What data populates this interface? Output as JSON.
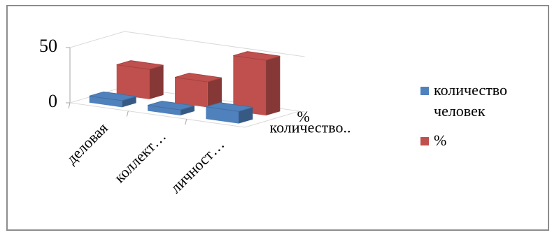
{
  "chart_data": {
    "type": "bar3d",
    "categories": [
      "деловая",
      "коллект…",
      "личност…"
    ],
    "depth_labels": [
      "%",
      "количество.."
    ],
    "series": [
      {
        "name": "количество человек",
        "color": "#4f81bd",
        "values": [
          6,
          5,
          11
        ]
      },
      {
        "name": "%",
        "color": "#c0504d",
        "values": [
          27,
          23,
          50
        ]
      }
    ],
    "ylim": [
      0,
      50
    ],
    "yticks": [
      0,
      50
    ]
  }
}
